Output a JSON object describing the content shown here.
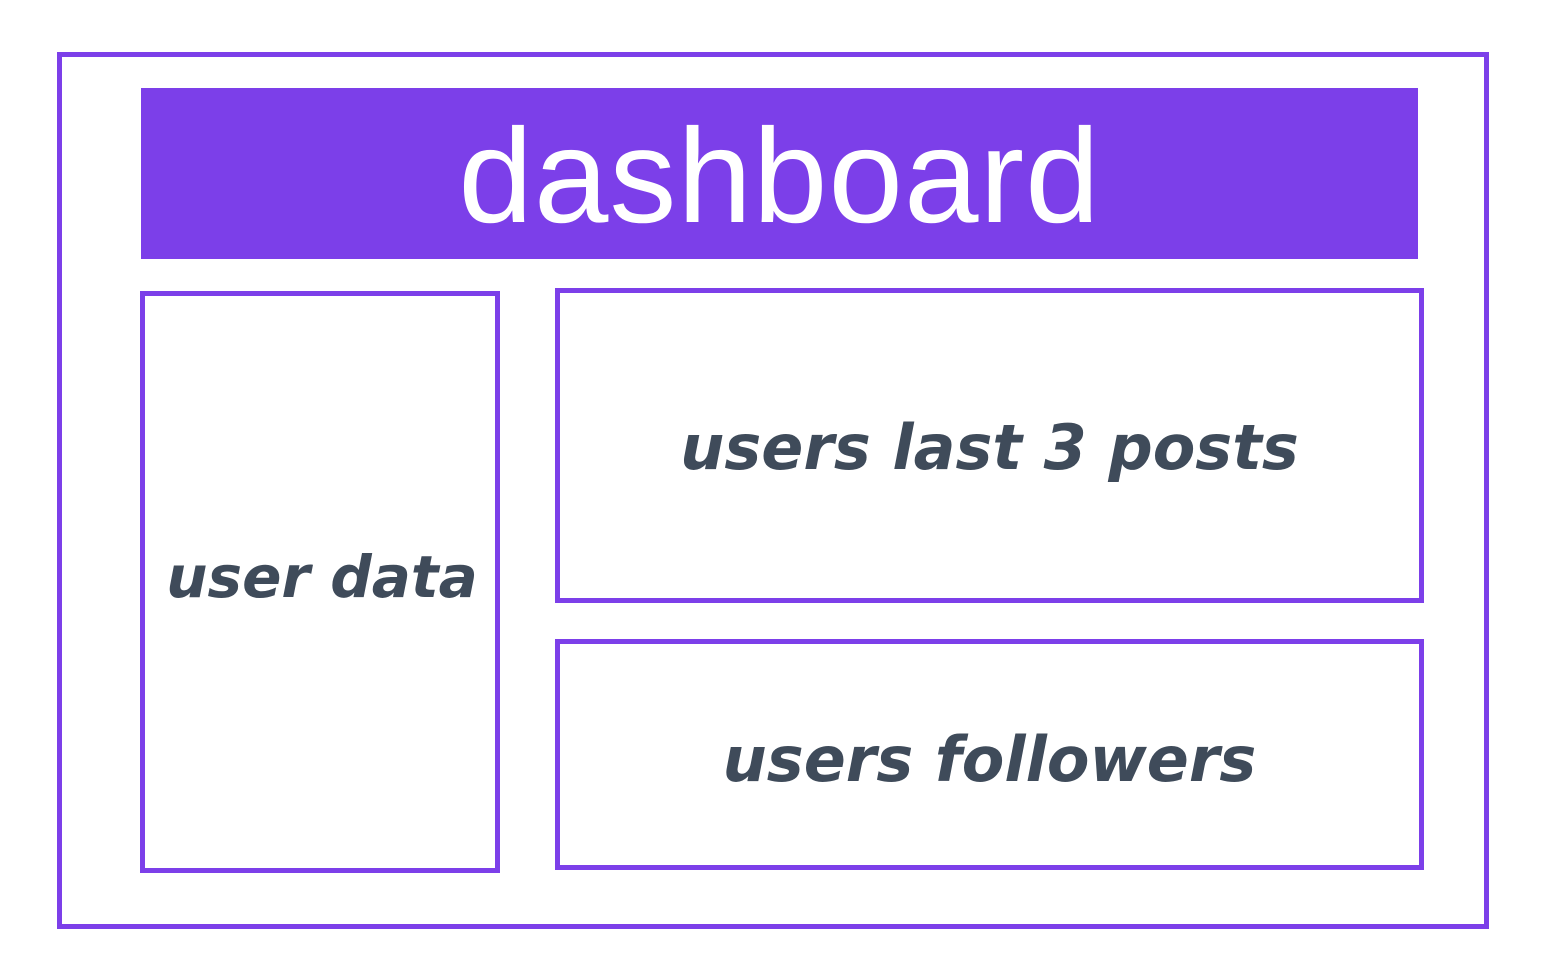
{
  "header": {
    "title": "dashboard"
  },
  "panels": {
    "user_data": "user data",
    "last_posts": "users last 3 posts",
    "followers": "users followers"
  },
  "colors": {
    "accent": "#7c3fe9",
    "text": "#3f4b5a",
    "background": "#ffffff"
  }
}
